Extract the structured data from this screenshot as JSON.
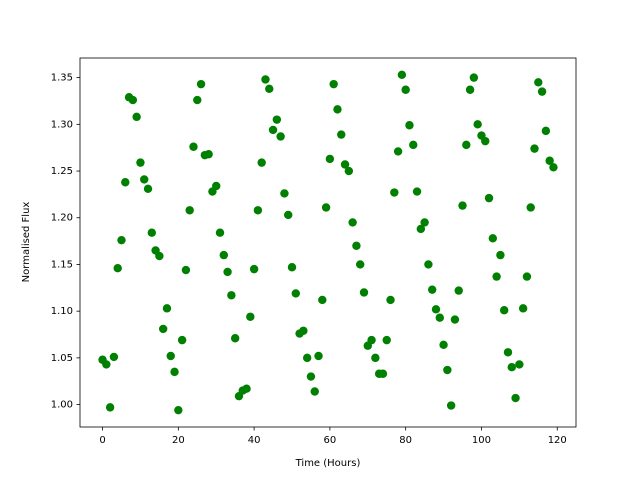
{
  "chart_data": {
    "type": "scatter",
    "xlabel": "Time (Hours)",
    "ylabel": "Normalised Flux",
    "x": [
      0,
      1,
      2,
      3,
      4,
      5,
      6,
      7,
      8,
      9,
      10,
      11,
      12,
      13,
      14,
      15,
      16,
      17,
      18,
      19,
      20,
      21,
      22,
      23,
      24,
      25,
      26,
      27,
      28,
      29,
      30,
      31,
      32,
      33,
      34,
      35,
      36,
      37,
      38,
      39,
      40,
      41,
      42,
      43,
      44,
      45,
      46,
      47,
      48,
      49,
      50,
      51,
      52,
      53,
      54,
      55,
      56,
      57,
      58,
      59,
      60,
      61,
      62,
      63,
      64,
      65,
      66,
      67,
      68,
      69,
      70,
      71,
      72,
      73,
      74,
      75,
      76,
      77,
      78,
      79,
      80,
      81,
      82,
      83,
      84,
      85,
      86,
      87,
      88,
      89,
      90,
      91,
      92,
      93,
      94,
      95,
      96,
      97,
      98,
      99,
      100,
      101,
      102,
      103,
      104,
      105,
      106,
      107,
      108,
      109,
      110,
      111,
      112,
      113,
      114,
      115,
      116,
      117,
      118,
      119
    ],
    "series": [
      {
        "color": "#008000",
        "values": [
          1.048,
          1.043,
          0.997,
          1.051,
          1.146,
          1.176,
          1.238,
          1.329,
          1.326,
          1.308,
          1.259,
          1.241,
          1.231,
          1.184,
          1.165,
          1.159,
          1.081,
          1.103,
          1.052,
          1.035,
          0.994,
          1.069,
          1.144,
          1.208,
          1.276,
          1.326,
          1.343,
          1.267,
          1.268,
          1.228,
          1.234,
          1.184,
          1.16,
          1.142,
          1.117,
          1.071,
          1.009,
          1.015,
          1.017,
          1.094,
          1.145,
          1.208,
          1.259,
          1.348,
          1.338,
          1.294,
          1.305,
          1.287,
          1.226,
          1.203,
          1.147,
          1.119,
          1.076,
          1.079,
          1.05,
          1.03,
          1.014,
          1.052,
          1.112,
          1.211,
          1.263,
          1.343,
          1.316,
          1.289,
          1.257,
          1.25,
          1.195,
          1.17,
          1.15,
          1.12,
          1.063,
          1.069,
          1.05,
          1.033,
          1.033,
          1.069,
          1.112,
          1.227,
          1.271,
          1.353,
          1.337,
          1.299,
          1.278,
          1.228,
          1.188,
          1.195,
          1.15,
          1.123,
          1.102,
          1.093,
          1.064,
          1.037,
          0.999,
          1.091,
          1.122,
          1.213,
          1.278,
          1.337,
          1.35,
          1.3,
          1.288,
          1.282,
          1.221,
          1.178,
          1.137,
          1.16,
          1.101,
          1.056,
          1.04,
          1.007,
          1.043,
          1.103,
          1.137,
          1.211,
          1.274,
          1.345,
          1.335,
          1.293,
          1.261,
          1.254
        ]
      }
    ],
    "xlim": [
      -5.95,
      124.95
    ],
    "xticks": [
      0,
      20,
      40,
      60,
      80,
      100,
      120
    ],
    "ylim": [
      0.976,
      1.371
    ],
    "yticks": [
      {
        "value": 1.0,
        "label": "1.00"
      },
      {
        "value": 1.05,
        "label": "1.05"
      },
      {
        "value": 1.1,
        "label": "1.10"
      },
      {
        "value": 1.15,
        "label": "1.15"
      },
      {
        "value": 1.2,
        "label": "1.20"
      },
      {
        "value": 1.25,
        "label": "1.25"
      },
      {
        "value": 1.3,
        "label": "1.30"
      },
      {
        "value": 1.35,
        "label": "1.35"
      }
    ],
    "grid": false
  }
}
